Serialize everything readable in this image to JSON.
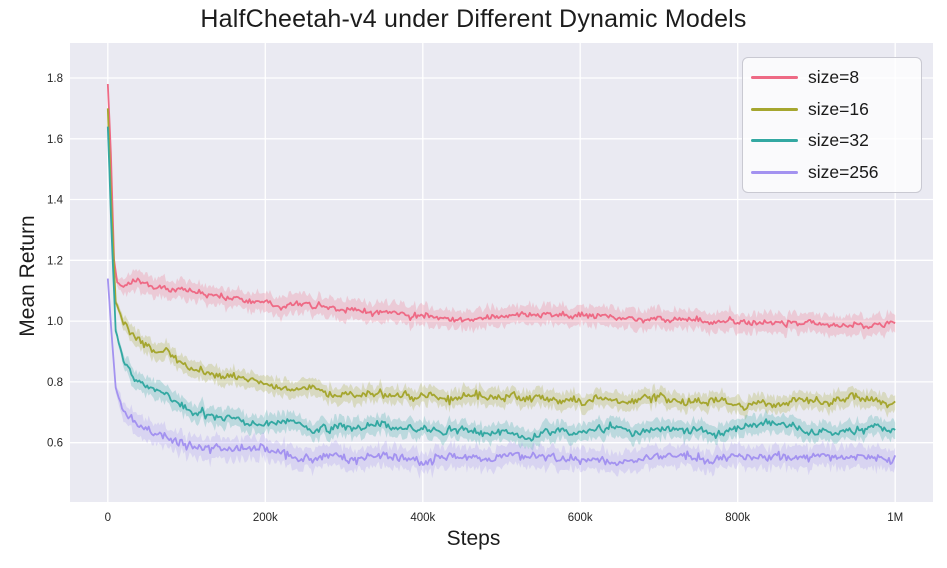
{
  "title": "HalfCheetah-v4 under Different Dynamic Models",
  "legend": {
    "items": [
      {
        "label": "size=8",
        "color": "#ee6a85"
      },
      {
        "label": "size=16",
        "color": "#a5a62f"
      },
      {
        "label": "size=32",
        "color": "#33a8a2"
      },
      {
        "label": "size=256",
        "color": "#a392f0"
      }
    ]
  },
  "chart_data": {
    "type": "line",
    "title": "HalfCheetah-v4 under Different Dynamic Models",
    "xlabel": "Steps",
    "ylabel": "Mean Return",
    "background": "#eaeaf2",
    "grid_color": "#ffffff",
    "grid": true,
    "legend_position": "upper right",
    "xlim": [
      -48000,
      1048000
    ],
    "ylim": [
      0.405,
      1.915
    ],
    "x_max": 1000000,
    "points": 501,
    "x_ticks": [
      {
        "value": 0,
        "label": "0"
      },
      {
        "value": 200000,
        "label": "200k"
      },
      {
        "value": 400000,
        "label": "400k"
      },
      {
        "value": 600000,
        "label": "600k"
      },
      {
        "value": 800000,
        "label": "800k"
      },
      {
        "value": 1000000,
        "label": "1M"
      }
    ],
    "y_ticks": [
      {
        "value": 1.8,
        "label": "1.8"
      },
      {
        "value": 1.6,
        "label": "1.6"
      },
      {
        "value": 1.4,
        "label": "1.4"
      },
      {
        "value": 1.2,
        "label": "1.2"
      },
      {
        "value": 1.0,
        "label": "1.0"
      },
      {
        "value": 0.8,
        "label": "0.8"
      },
      {
        "value": 0.6,
        "label": "0.6"
      }
    ],
    "noise_seed": 11,
    "noise_ramp_steps": 25000,
    "band_opacity": 0.25,
    "series": [
      {
        "name": "size=8",
        "color": "#ee6a85",
        "line_noise": 0.013,
        "band_noise": 0.042,
        "keypoints": [
          [
            0,
            1.78
          ],
          [
            4000,
            1.55
          ],
          [
            8000,
            1.2
          ],
          [
            12000,
            1.125
          ],
          [
            20000,
            1.115
          ],
          [
            40000,
            1.12
          ],
          [
            60000,
            1.115
          ],
          [
            80000,
            1.105
          ],
          [
            100000,
            1.095
          ],
          [
            130000,
            1.085
          ],
          [
            160000,
            1.072
          ],
          [
            200000,
            1.06
          ],
          [
            250000,
            1.048
          ],
          [
            300000,
            1.04
          ],
          [
            350000,
            1.03
          ],
          [
            400000,
            1.025
          ],
          [
            500000,
            1.016
          ],
          [
            600000,
            1.012
          ],
          [
            700000,
            1.008
          ],
          [
            800000,
            1.0
          ],
          [
            900000,
            1.002
          ],
          [
            1000000,
            1.005
          ]
        ]
      },
      {
        "name": "size=16",
        "color": "#a5a62f",
        "line_noise": 0.016,
        "band_noise": 0.036,
        "keypoints": [
          [
            0,
            1.7
          ],
          [
            5000,
            1.35
          ],
          [
            10000,
            1.06
          ],
          [
            20000,
            0.99
          ],
          [
            35000,
            0.945
          ],
          [
            60000,
            0.905
          ],
          [
            100000,
            0.86
          ],
          [
            150000,
            0.82
          ],
          [
            200000,
            0.79
          ],
          [
            250000,
            0.772
          ],
          [
            300000,
            0.758
          ],
          [
            400000,
            0.742
          ],
          [
            500000,
            0.738
          ],
          [
            600000,
            0.732
          ],
          [
            700000,
            0.738
          ],
          [
            800000,
            0.732
          ],
          [
            900000,
            0.736
          ],
          [
            1000000,
            0.735
          ]
        ]
      },
      {
        "name": "size=32",
        "color": "#33a8a2",
        "line_noise": 0.016,
        "band_noise": 0.038,
        "keypoints": [
          [
            0,
            1.64
          ],
          [
            5000,
            1.28
          ],
          [
            10000,
            0.97
          ],
          [
            20000,
            0.86
          ],
          [
            35000,
            0.8
          ],
          [
            60000,
            0.755
          ],
          [
            100000,
            0.7
          ],
          [
            150000,
            0.675
          ],
          [
            200000,
            0.662
          ],
          [
            250000,
            0.655
          ],
          [
            300000,
            0.65
          ],
          [
            400000,
            0.645
          ],
          [
            500000,
            0.64
          ],
          [
            600000,
            0.638
          ],
          [
            700000,
            0.641
          ],
          [
            800000,
            0.638
          ],
          [
            900000,
            0.64
          ],
          [
            1000000,
            0.64
          ]
        ]
      },
      {
        "name": "size=256",
        "color": "#a392f0",
        "line_noise": 0.017,
        "band_noise": 0.046,
        "keypoints": [
          [
            0,
            1.14
          ],
          [
            5000,
            0.95
          ],
          [
            10000,
            0.78
          ],
          [
            20000,
            0.7
          ],
          [
            35000,
            0.665
          ],
          [
            60000,
            0.625
          ],
          [
            100000,
            0.59
          ],
          [
            150000,
            0.572
          ],
          [
            200000,
            0.565
          ],
          [
            300000,
            0.558
          ],
          [
            400000,
            0.552
          ],
          [
            500000,
            0.555
          ],
          [
            600000,
            0.55
          ],
          [
            700000,
            0.553
          ],
          [
            800000,
            0.55
          ],
          [
            900000,
            0.552
          ],
          [
            1000000,
            0.555
          ]
        ]
      }
    ]
  }
}
